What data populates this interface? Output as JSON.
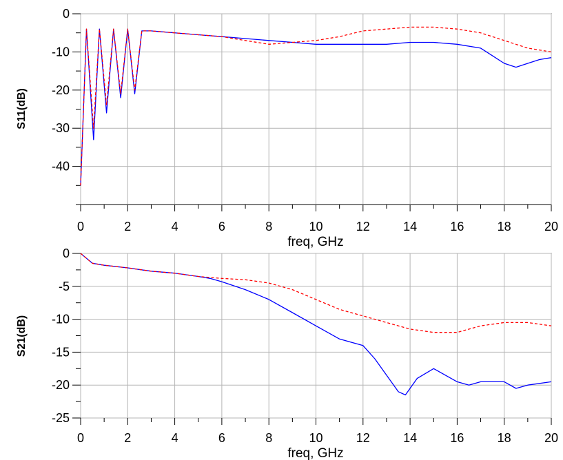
{
  "colors": {
    "blue": "#0000ff",
    "red": "#ff0000",
    "grid": "#b4b4b4"
  },
  "chart_data": [
    {
      "type": "line",
      "xlabel": "freq, GHz",
      "ylabel": "S11(dB)",
      "xlim": [
        0,
        20
      ],
      "ylim": [
        -50,
        0
      ],
      "xticks": [
        0,
        2,
        4,
        6,
        8,
        10,
        12,
        14,
        16,
        18,
        20
      ],
      "yticks": [
        0,
        -10,
        -20,
        -30,
        -40
      ],
      "grid": true,
      "series": [
        {
          "color": "#0000ff",
          "style": "solid",
          "x": [
            0,
            0.25,
            0.55,
            0.8,
            1.1,
            1.4,
            1.7,
            2.0,
            2.3,
            2.6,
            3,
            4,
            5,
            6,
            7,
            8,
            9,
            10,
            11,
            12,
            13,
            14,
            15,
            16,
            17,
            17.5,
            18,
            18.5,
            19,
            19.5,
            20
          ],
          "y": [
            -45,
            -4,
            -33,
            -4,
            -26,
            -4,
            -22,
            -4,
            -21,
            -4.5,
            -4.5,
            -5,
            -5.5,
            -6,
            -6.5,
            -7,
            -7.5,
            -8,
            -8,
            -8,
            -8,
            -7.5,
            -7.5,
            -8,
            -9,
            -11,
            -13,
            -14,
            -13,
            -12,
            -11.5
          ]
        },
        {
          "color": "#ff0000",
          "style": "dashed",
          "x": [
            0,
            0.25,
            0.55,
            0.8,
            1.1,
            1.4,
            1.7,
            2.0,
            2.3,
            2.6,
            3,
            4,
            5,
            6,
            7,
            8,
            9,
            10,
            11,
            12,
            13,
            14,
            15,
            16,
            17,
            18,
            19,
            20
          ],
          "y": [
            -45,
            -4,
            -30,
            -4,
            -24,
            -4,
            -21,
            -4,
            -20,
            -4.5,
            -4.5,
            -5,
            -5.5,
            -6,
            -7,
            -8,
            -7.5,
            -7,
            -6,
            -4.5,
            -4,
            -3.5,
            -3.5,
            -4,
            -5,
            -7,
            -9,
            -10
          ]
        }
      ]
    },
    {
      "type": "line",
      "xlabel": "freq, GHz",
      "ylabel": "S21(dB)",
      "xlim": [
        0,
        20
      ],
      "ylim": [
        -25,
        0
      ],
      "xticks": [
        0,
        2,
        4,
        6,
        8,
        10,
        12,
        14,
        16,
        18,
        20
      ],
      "yticks": [
        0,
        -5,
        -10,
        -15,
        -20,
        -25
      ],
      "grid": true,
      "series": [
        {
          "color": "#0000ff",
          "style": "solid",
          "x": [
            0,
            0.5,
            1,
            2,
            3,
            4,
            5,
            5.5,
            6,
            7,
            8,
            9,
            10,
            11,
            12,
            12.5,
            13,
            13.5,
            13.8,
            14.3,
            15,
            16,
            16.5,
            17,
            18,
            18.5,
            19,
            20
          ],
          "y": [
            0,
            -1.5,
            -1.8,
            -2.2,
            -2.7,
            -3.0,
            -3.5,
            -3.8,
            -4.3,
            -5.5,
            -7.0,
            -9.0,
            -11,
            -13,
            -14,
            -16,
            -18.5,
            -21,
            -21.5,
            -19,
            -17.5,
            -19.5,
            -20,
            -19.5,
            -19.5,
            -20.5,
            -20,
            -19.5
          ]
        },
        {
          "color": "#ff0000",
          "style": "dashed",
          "x": [
            0,
            0.5,
            1,
            2,
            3,
            4,
            5,
            6,
            7,
            8,
            9,
            10,
            11,
            12,
            13,
            14,
            15,
            16,
            17,
            18,
            19,
            20
          ],
          "y": [
            0,
            -1.5,
            -1.8,
            -2.2,
            -2.7,
            -3.0,
            -3.5,
            -3.8,
            -4.0,
            -4.5,
            -5.5,
            -7.0,
            -8.5,
            -9.5,
            -10.5,
            -11.5,
            -12.0,
            -12.0,
            -11.0,
            -10.5,
            -10.5,
            -11
          ]
        }
      ]
    }
  ]
}
